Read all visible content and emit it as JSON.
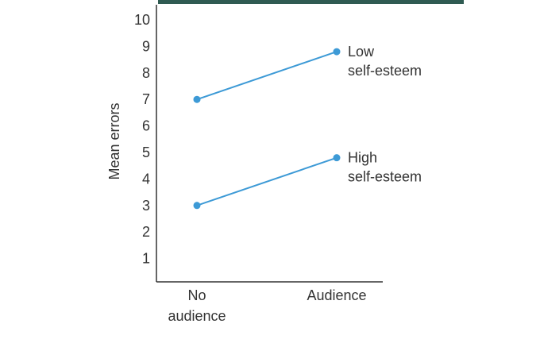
{
  "chart_data": {
    "type": "line",
    "title": "",
    "xlabel": "",
    "ylabel": "Mean errors",
    "categories": [
      "No audience",
      "Audience"
    ],
    "category_lines": [
      [
        "No",
        "audience"
      ],
      [
        "Audience"
      ]
    ],
    "yticks": [
      1,
      2,
      3,
      4,
      5,
      6,
      7,
      8,
      9,
      10
    ],
    "ylim": [
      0,
      10
    ],
    "grid": false,
    "legend": "none",
    "series": [
      {
        "name": "Low self-esteem",
        "label_lines": [
          "Low",
          "self-esteem"
        ],
        "values": [
          7,
          8.8
        ]
      },
      {
        "name": "High self-esteem",
        "label_lines": [
          "High",
          "self-esteem"
        ],
        "values": [
          3,
          4.8
        ]
      }
    ]
  },
  "colors": {
    "line": "#3d9ad6",
    "axis": "#333333",
    "top_bar": "#2f5b52"
  }
}
